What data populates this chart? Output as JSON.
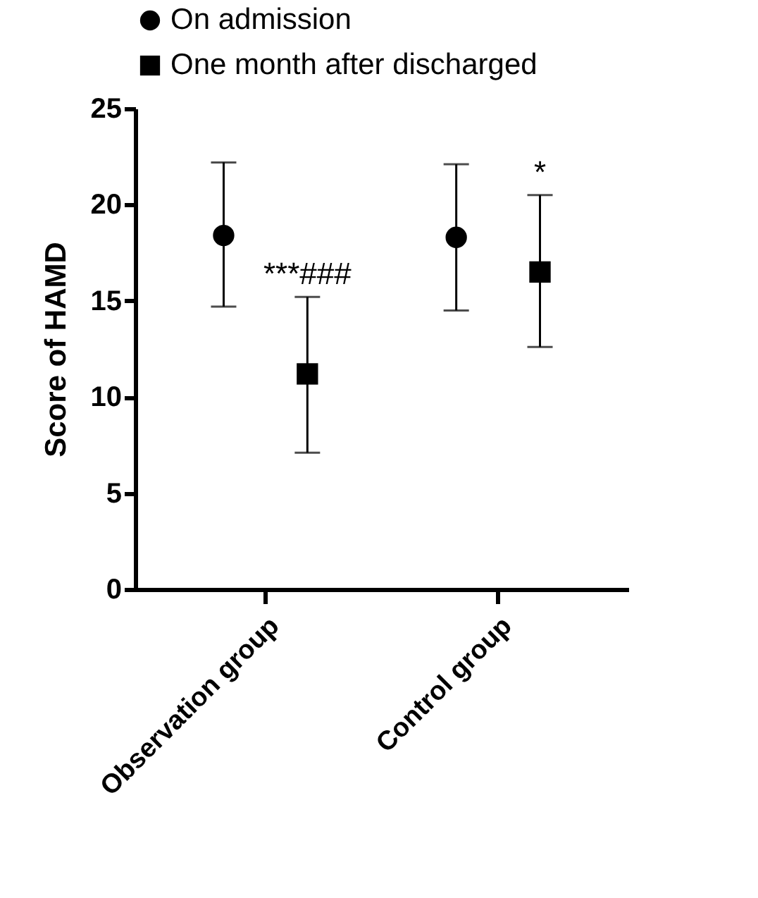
{
  "chart_data": {
    "type": "scatter",
    "ylabel": "Score of HAMD",
    "categories": [
      "Observation group",
      "Control group"
    ],
    "series": [
      {
        "name": "On admission",
        "color": "#000000",
        "marker": "circle",
        "values": [
          18.4,
          18.3
        ],
        "errors": [
          [
            14.7,
            22.2
          ],
          [
            14.5,
            22.1
          ]
        ]
      },
      {
        "name": "One month after discharged",
        "color": "#000000",
        "marker": "square",
        "values": [
          11.2,
          16.5
        ],
        "errors": [
          [
            7.1,
            15.2
          ],
          [
            12.6,
            20.5
          ]
        ]
      }
    ],
    "annotations": [
      "***###",
      "*"
    ],
    "ylim": [
      0,
      25
    ],
    "yticks": [
      0,
      5,
      10,
      15,
      20,
      25
    ],
    "grid": false,
    "legend": "top"
  }
}
